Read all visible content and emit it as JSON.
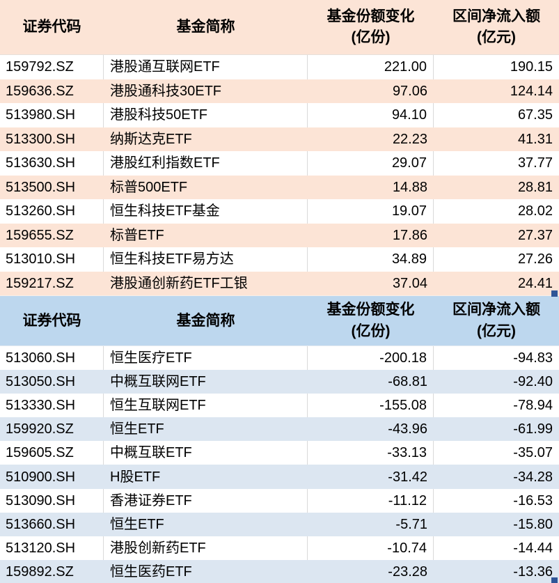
{
  "colors": {
    "inflow_header_bg": "#FCE4D6",
    "inflow_stripe_bg": "#FCE4D6",
    "outflow_header_bg": "#BDD7EE",
    "outflow_stripe_bg": "#DCE6F1",
    "row_bg": "#FFFFFF",
    "grid_line": "#D9D9D9",
    "text": "#000000",
    "selection_handle": "#2F5597",
    "outflow_bottom_border": "#9AB2CE"
  },
  "chart_data": [
    {
      "type": "table",
      "columns": [
        "证券代码",
        "基金简称",
        "基金份额变化(亿份)",
        "区间净流入额(亿元)"
      ],
      "header": {
        "code": "证券代码",
        "name": "基金简称",
        "change_title": "基金份额变化",
        "change_unit": "(亿份)",
        "inflow_title": "区间净流入额",
        "inflow_unit": "(亿元)"
      },
      "rows": [
        {
          "code": "159792.SZ",
          "name": "港股通互联网ETF",
          "change": "221.00",
          "inflow": "190.15"
        },
        {
          "code": "159636.SZ",
          "name": "港股通科技30ETF",
          "change": "97.06",
          "inflow": "124.14"
        },
        {
          "code": "513980.SH",
          "name": "港股科技50ETF",
          "change": "94.10",
          "inflow": "67.35"
        },
        {
          "code": "513300.SH",
          "name": "纳斯达克ETF",
          "change": "22.23",
          "inflow": "41.31"
        },
        {
          "code": "513630.SH",
          "name": "港股红利指数ETF",
          "change": "29.07",
          "inflow": "37.77"
        },
        {
          "code": "513500.SH",
          "name": "标普500ETF",
          "change": "14.88",
          "inflow": "28.81"
        },
        {
          "code": "513260.SH",
          "name": "恒生科技ETF基金",
          "change": "19.07",
          "inflow": "28.02"
        },
        {
          "code": "159655.SZ",
          "name": "标普ETF",
          "change": "17.86",
          "inflow": "27.37"
        },
        {
          "code": "513010.SH",
          "name": "恒生科技ETF易方达",
          "change": "34.89",
          "inflow": "27.26"
        },
        {
          "code": "159217.SZ",
          "name": "港股通创新药ETF工银",
          "change": "37.04",
          "inflow": "24.41"
        }
      ]
    },
    {
      "type": "table",
      "columns": [
        "证券代码",
        "基金简称",
        "基金份额变化(亿份)",
        "区间净流入额(亿元)"
      ],
      "header": {
        "code": "证券代码",
        "name": "基金简称",
        "change_title": "基金份额变化",
        "change_unit": "(亿份)",
        "inflow_title": "区间净流入额",
        "inflow_unit": "(亿元)"
      },
      "rows": [
        {
          "code": "513060.SH",
          "name": "恒生医疗ETF",
          "change": "-200.18",
          "inflow": "-94.83"
        },
        {
          "code": "513050.SH",
          "name": "中概互联网ETF",
          "change": "-68.81",
          "inflow": "-92.40"
        },
        {
          "code": "513330.SH",
          "name": "恒生互联网ETF",
          "change": "-155.08",
          "inflow": "-78.94"
        },
        {
          "code": "159920.SZ",
          "name": "恒生ETF",
          "change": "-43.96",
          "inflow": "-61.99"
        },
        {
          "code": "159605.SZ",
          "name": "中概互联ETF",
          "change": "-33.13",
          "inflow": "-35.07"
        },
        {
          "code": "510900.SH",
          "name": "H股ETF",
          "change": "-31.42",
          "inflow": "-34.28"
        },
        {
          "code": "513090.SH",
          "name": "香港证券ETF",
          "change": "-11.12",
          "inflow": "-16.53"
        },
        {
          "code": "513660.SH",
          "name": "恒生ETF",
          "change": "-5.71",
          "inflow": "-15.80"
        },
        {
          "code": "513120.SH",
          "name": "港股创新药ETF",
          "change": "-10.74",
          "inflow": "-14.44"
        },
        {
          "code": "159892.SZ",
          "name": "恒生医药ETF",
          "change": "-23.28",
          "inflow": "-13.36"
        }
      ]
    }
  ]
}
